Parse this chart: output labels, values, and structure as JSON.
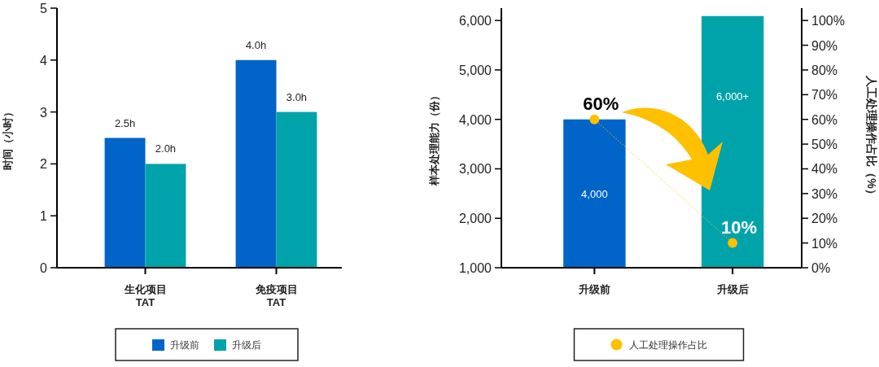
{
  "chart_data": [
    {
      "type": "bar",
      "ylabel": "时间（小时）",
      "categories": [
        "生化项目\nTAT",
        "免疫项目\nTAT"
      ],
      "series": [
        {
          "name": "升级前",
          "color": "#0064c8",
          "values": [
            2.5,
            4.0
          ],
          "value_labels": [
            "2.5h",
            "4.0h"
          ]
        },
        {
          "name": "升级后",
          "color": "#00a3aa",
          "values": [
            2.0,
            3.0
          ],
          "value_labels": [
            "2.0h",
            "3.0h"
          ]
        }
      ],
      "ylim": [
        0,
        5
      ],
      "yticks": [
        0,
        1,
        2,
        3,
        4,
        5
      ],
      "grid": false,
      "legend": "bottom"
    },
    {
      "type": "bar",
      "ylabel": "样本处理能力（份）",
      "y2label": "人工处理操作占比（%）",
      "categories": [
        "升级前",
        "升级后"
      ],
      "series": [
        {
          "colors": [
            "#0064c8",
            "#00a3aa"
          ],
          "values": [
            4000,
            6090
          ],
          "value_labels": [
            "4,000",
            "6,000+"
          ]
        },
        {
          "type": "line",
          "name": "人工处理操作占比",
          "axis": "y2",
          "color": "#ffc000",
          "values": [
            60,
            10
          ],
          "value_labels": [
            "60%",
            "10%"
          ]
        }
      ],
      "ylim": [
        1000,
        6250
      ],
      "yticks": [
        {
          "value": 1000,
          "label": "1,000"
        },
        {
          "value": 2000,
          "label": "2,000"
        },
        {
          "value": 3000,
          "label": "3,000"
        },
        {
          "value": 4000,
          "label": "4,000"
        },
        {
          "value": 5000,
          "label": "5,000"
        },
        {
          "value": 6000,
          "label": "6,000"
        }
      ],
      "y2lim": [
        0,
        105
      ],
      "y2ticks": [
        {
          "value": 0,
          "label": "0%"
        },
        {
          "value": 10,
          "label": "10%"
        },
        {
          "value": 20,
          "label": "20%"
        },
        {
          "value": 30,
          "label": "30%"
        },
        {
          "value": 40,
          "label": "40%"
        },
        {
          "value": 50,
          "label": "50%"
        },
        {
          "value": 60,
          "label": "60%"
        },
        {
          "value": 70,
          "label": "70%"
        },
        {
          "value": 80,
          "label": "80%"
        },
        {
          "value": 90,
          "label": "90%"
        },
        {
          "value": 100,
          "label": "100%"
        }
      ],
      "grid": false,
      "legend": "bottom",
      "marker": "circle",
      "line_style": "dotted"
    }
  ]
}
